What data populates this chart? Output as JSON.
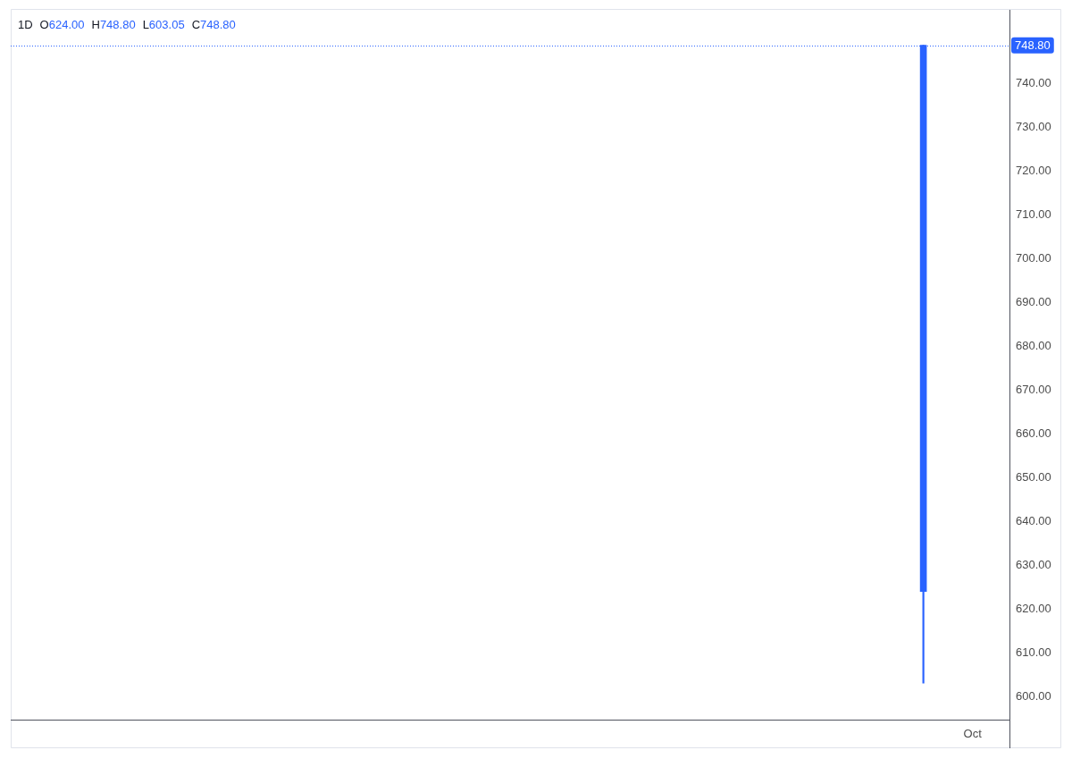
{
  "chart_data": {
    "type": "candlestick",
    "title": "1D",
    "annotations": [
      "O624.00",
      "H748.80",
      "L603.05",
      "C748.80"
    ],
    "categories": [
      null,
      null,
      null,
      null,
      null,
      null,
      null,
      null,
      null,
      null,
      null,
      null,
      null,
      null,
      null,
      null,
      null,
      null,
      null,
      null,
      null,
      null,
      null,
      null,
      null,
      null,
      null,
      null,
      null,
      null,
      null,
      null,
      null,
      null,
      null,
      null,
      null,
      null,
      null,
      null,
      null,
      null,
      null,
      null,
      null,
      null,
      null,
      null,
      null,
      null,
      null,
      null,
      null,
      null,
      null,
      null,
      null,
      null,
      null,
      null,
      null,
      null,
      null,
      null,
      null,
      null,
      null,
      null,
      null,
      null,
      null,
      null,
      null,
      null,
      null,
      null,
      null,
      null,
      null,
      null,
      null,
      null,
      null,
      null,
      null,
      null,
      null,
      null,
      null,
      null,
      null,
      null,
      null,
      null,
      null,
      null,
      null,
      null,
      null,
      null,
      null,
      null,
      null,
      null,
      null,
      null,
      null,
      null,
      null,
      null,
      null,
      null,
      null,
      null,
      null,
      null,
      null,
      null,
      null,
      null,
      null,
      null,
      null,
      null,
      null,
      null,
      null,
      null,
      null,
      null,
      null,
      null,
      null,
      null,
      null,
      null,
      null,
      null,
      null,
      null,
      null,
      null,
      null,
      null,
      null,
      null,
      null,
      null,
      null,
      null,
      null,
      null,
      null,
      null,
      null,
      null,
      null,
      null,
      null,
      null,
      null,
      null,
      null,
      null,
      null,
      null,
      null,
      null,
      null,
      null,
      null,
      null,
      null,
      null,
      null,
      null,
      null,
      null,
      null,
      null,
      null,
      null,
      null,
      null,
      null,
      null,
      null,
      null,
      null,
      null,
      null,
      null,
      null,
      null,
      null,
      "Oct",
      null,
      null,
      null,
      null,
      null,
      null,
      null
    ],
    "ohlc": [
      null,
      null,
      null,
      null,
      null,
      null,
      null,
      null,
      null,
      null,
      null,
      null,
      null,
      null,
      null,
      null,
      null,
      null,
      null,
      null,
      null,
      null,
      null,
      null,
      null,
      null,
      null,
      null,
      null,
      null,
      null,
      null,
      null,
      null,
      null,
      null,
      null,
      null,
      null,
      null,
      null,
      null,
      null,
      null,
      null,
      null,
      null,
      null,
      null,
      null,
      null,
      null,
      null,
      null,
      null,
      null,
      null,
      null,
      null,
      null,
      null,
      null,
      null,
      null,
      null,
      null,
      null,
      null,
      null,
      null,
      null,
      null,
      null,
      null,
      null,
      null,
      null,
      null,
      null,
      null,
      null,
      null,
      null,
      null,
      null,
      null,
      null,
      null,
      null,
      null,
      null,
      null,
      null,
      null,
      null,
      null,
      null,
      null,
      null,
      null,
      null,
      null,
      null,
      null,
      null,
      null,
      null,
      null,
      null,
      null,
      null,
      null,
      null,
      null,
      null,
      null,
      null,
      null,
      null,
      null,
      null,
      null,
      null,
      null,
      null,
      null,
      null,
      null,
      null,
      null,
      null,
      null,
      null,
      null,
      null,
      null,
      null,
      null,
      null,
      null,
      null,
      null,
      null,
      null,
      null,
      null,
      null,
      null,
      null,
      null,
      null,
      null,
      null,
      null,
      null,
      null,
      null,
      null,
      null,
      null,
      null,
      null,
      null,
      null,
      null,
      null,
      null,
      null,
      null,
      null,
      null,
      null,
      null,
      null,
      null,
      null,
      null,
      null,
      null,
      null,
      null,
      null,
      null,
      null,
      null,
      [
        624.0,
        748.8,
        603.05,
        748.8
      ],
      null,
      null,
      null,
      null,
      null,
      null,
      null,
      null,
      null,
      null,
      null,
      null,
      null,
      null,
      null,
      null,
      null
    ],
    "color": "#2962ff",
    "ylim": [
      594.7,
      756.9
    ],
    "yticks": [
      {
        "value": 600,
        "label": "600.00"
      },
      {
        "value": 610,
        "label": "610.00"
      },
      {
        "value": 620,
        "label": "620.00"
      },
      {
        "value": 630,
        "label": "630.00"
      },
      {
        "value": 640,
        "label": "640.00"
      },
      {
        "value": 650,
        "label": "650.00"
      },
      {
        "value": 660,
        "label": "660.00"
      },
      {
        "value": 670,
        "label": "670.00"
      },
      {
        "value": 680,
        "label": "680.00"
      },
      {
        "value": 690,
        "label": "690.00"
      },
      {
        "value": 700,
        "label": "700.00"
      },
      {
        "value": 710,
        "label": "710.00"
      },
      {
        "value": 720,
        "label": "720.00"
      },
      {
        "value": 730,
        "label": "730.00"
      },
      {
        "value": 740,
        "label": "740.00"
      }
    ],
    "ref_lines": [
      {
        "axis": "y",
        "value": 748.8,
        "label": "748.80",
        "color": "#2962ff",
        "line_style": "dotted"
      }
    ]
  }
}
